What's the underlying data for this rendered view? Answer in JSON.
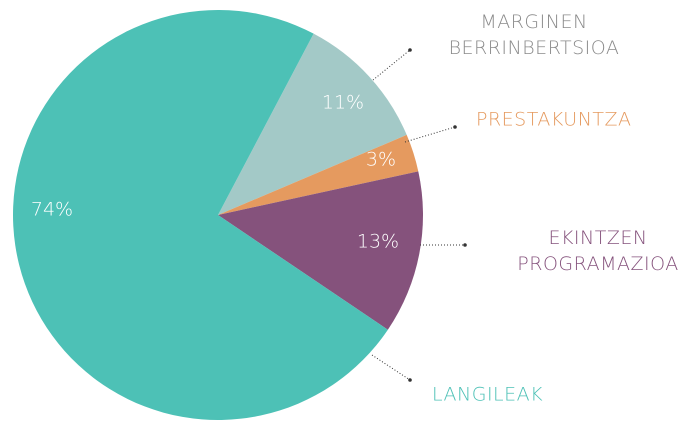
{
  "chart_data": {
    "type": "pie",
    "categories": [
      "MARGINEN BERRINBERTSIOA",
      "PRESTAKUNTZA",
      "EKINTZEN PROGRAMAZIOA",
      "LANGILEAK"
    ],
    "values": [
      11,
      3,
      13,
      74
    ],
    "value_labels": [
      "11%",
      "3%",
      "13%",
      "74%"
    ],
    "colors": [
      "#a3c9c7",
      "#e59a5f",
      "#85527c",
      "#4dc1b6"
    ]
  }
}
